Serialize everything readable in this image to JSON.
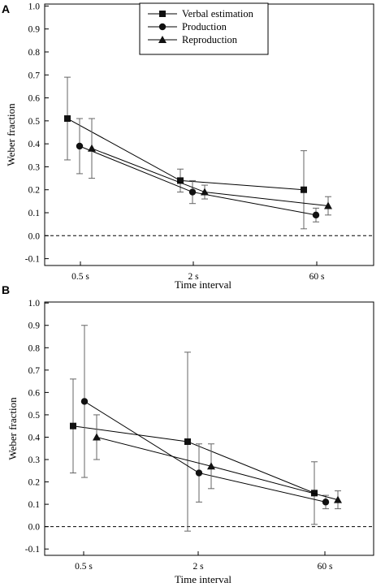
{
  "chart_data": [
    {
      "panel": "A",
      "type": "line",
      "categories": [
        "0.5 s",
        "2 s",
        "60 s"
      ],
      "xlabel": "Time interval",
      "ylabel": "Weber  fraction",
      "ylim": [
        -0.1,
        1.0
      ],
      "yticks": [
        "-0.1",
        "0.0",
        "0.1",
        "0.2",
        "0.3",
        "0.4",
        "0.5",
        "0.6",
        "0.7",
        "0.8",
        "0.9",
        "1.0"
      ],
      "reference_line": 0.0,
      "legend": {
        "placement": "top-center",
        "entries": [
          "Verbal estimation",
          "Production",
          "Reproduction"
        ]
      },
      "series": [
        {
          "name": "Verbal estimation",
          "marker": "square",
          "values": [
            0.51,
            0.24,
            0.2
          ],
          "error": [
            0.18,
            0.05,
            0.17
          ]
        },
        {
          "name": "Production",
          "marker": "circle",
          "values": [
            0.39,
            0.19,
            0.09
          ],
          "error": [
            0.12,
            0.05,
            0.03
          ]
        },
        {
          "name": "Reproduction",
          "marker": "triangle",
          "values": [
            0.38,
            0.19,
            0.13
          ],
          "error": [
            0.13,
            0.03,
            0.04
          ]
        }
      ]
    },
    {
      "panel": "B",
      "type": "line",
      "categories": [
        "0.5 s",
        "2 s",
        "60 s"
      ],
      "xlabel": "Time interval",
      "ylabel": "Weber  fraction",
      "ylim": [
        -0.1,
        1.0
      ],
      "yticks": [
        "-0.1",
        "0.0",
        "0.1",
        "0.2",
        "0.3",
        "0.4",
        "0.5",
        "0.6",
        "0.7",
        "0.8",
        "0.9",
        "1.0"
      ],
      "reference_line": 0.0,
      "series": [
        {
          "name": "Verbal estimation",
          "marker": "square",
          "values": [
            0.45,
            0.38,
            0.15
          ],
          "error": [
            0.21,
            0.4,
            0.14
          ]
        },
        {
          "name": "Production",
          "marker": "circle",
          "values": [
            0.56,
            0.24,
            0.11
          ],
          "error": [
            0.34,
            0.13,
            0.03
          ]
        },
        {
          "name": "Reproduction",
          "marker": "triangle",
          "values": [
            0.4,
            0.27,
            0.12
          ],
          "error": [
            0.1,
            0.1,
            0.04
          ]
        }
      ]
    }
  ]
}
